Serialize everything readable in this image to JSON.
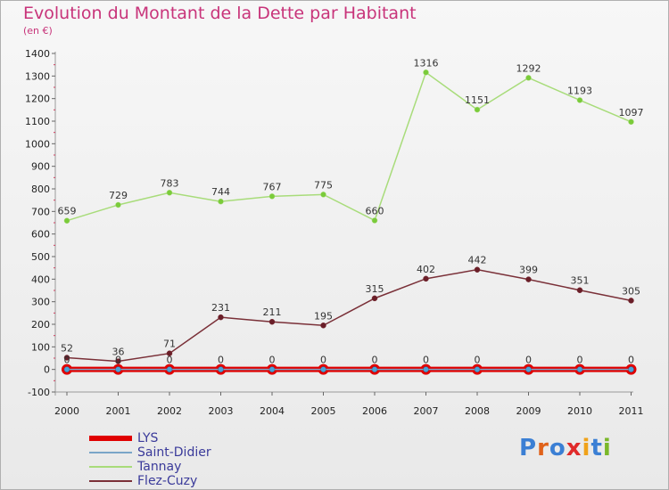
{
  "title": "Evolution du Montant de la Dette par Habitant",
  "subtitle": "(en €)",
  "logo": {
    "text": "Proxiti",
    "letters": [
      "P",
      "r",
      "o",
      "x",
      "i",
      "t",
      "i"
    ],
    "colors": [
      "#3b7fd4",
      "#e0621a",
      "#3b7fd4",
      "#e02a2a",
      "#f0a21a",
      "#3b7fd4",
      "#7ab82a"
    ]
  },
  "chart_data": {
    "type": "line",
    "title": "Evolution du Montant de la Dette par Habitant",
    "ylabel": "(en €)",
    "xlabel": "",
    "x": [
      "2000",
      "2001",
      "2002",
      "2003",
      "2004",
      "2005",
      "2006",
      "2007",
      "2008",
      "2009",
      "2010",
      "2011"
    ],
    "ylim": [
      -100,
      1400
    ],
    "yticks": [
      "-100",
      "0",
      "100",
      "200",
      "300",
      "400",
      "500",
      "600",
      "700",
      "800",
      "900",
      "1000",
      "1100",
      "1200",
      "1300",
      "1400"
    ],
    "grid": false,
    "legend_position": "bottom-left",
    "series": [
      {
        "name": "LYS",
        "color": "#e00000",
        "values": [
          0,
          0,
          0,
          0,
          0,
          0,
          0,
          0,
          0,
          0,
          0,
          0
        ],
        "labels": [
          "0",
          "0",
          "0",
          "0",
          "0",
          "0",
          "0",
          "0",
          "0",
          "0",
          "0",
          "0"
        ]
      },
      {
        "name": "Saint-Didier",
        "color": "#7aa6c8",
        "values": [
          0,
          0,
          0,
          0,
          0,
          0,
          0,
          0,
          0,
          0,
          0,
          0
        ],
        "labels": []
      },
      {
        "name": "Tannay",
        "color": "#a8dc7a",
        "values": [
          659,
          729,
          783,
          744,
          767,
          775,
          660,
          1316,
          1151,
          1292,
          1193,
          1097
        ],
        "labels": [
          "659",
          "729",
          "783",
          "744",
          "767",
          "775",
          "660",
          "1316",
          "1151",
          "1292",
          "1193",
          "1097"
        ]
      },
      {
        "name": "Flez-Cuzy",
        "color": "#7a3038",
        "values": [
          52,
          36,
          71,
          231,
          211,
          195,
          315,
          402,
          442,
          399,
          351,
          305
        ],
        "labels": [
          "52",
          "36",
          "71",
          "231",
          "211",
          "195",
          "315",
          "402",
          "442",
          "399",
          "351",
          "305"
        ]
      }
    ]
  }
}
